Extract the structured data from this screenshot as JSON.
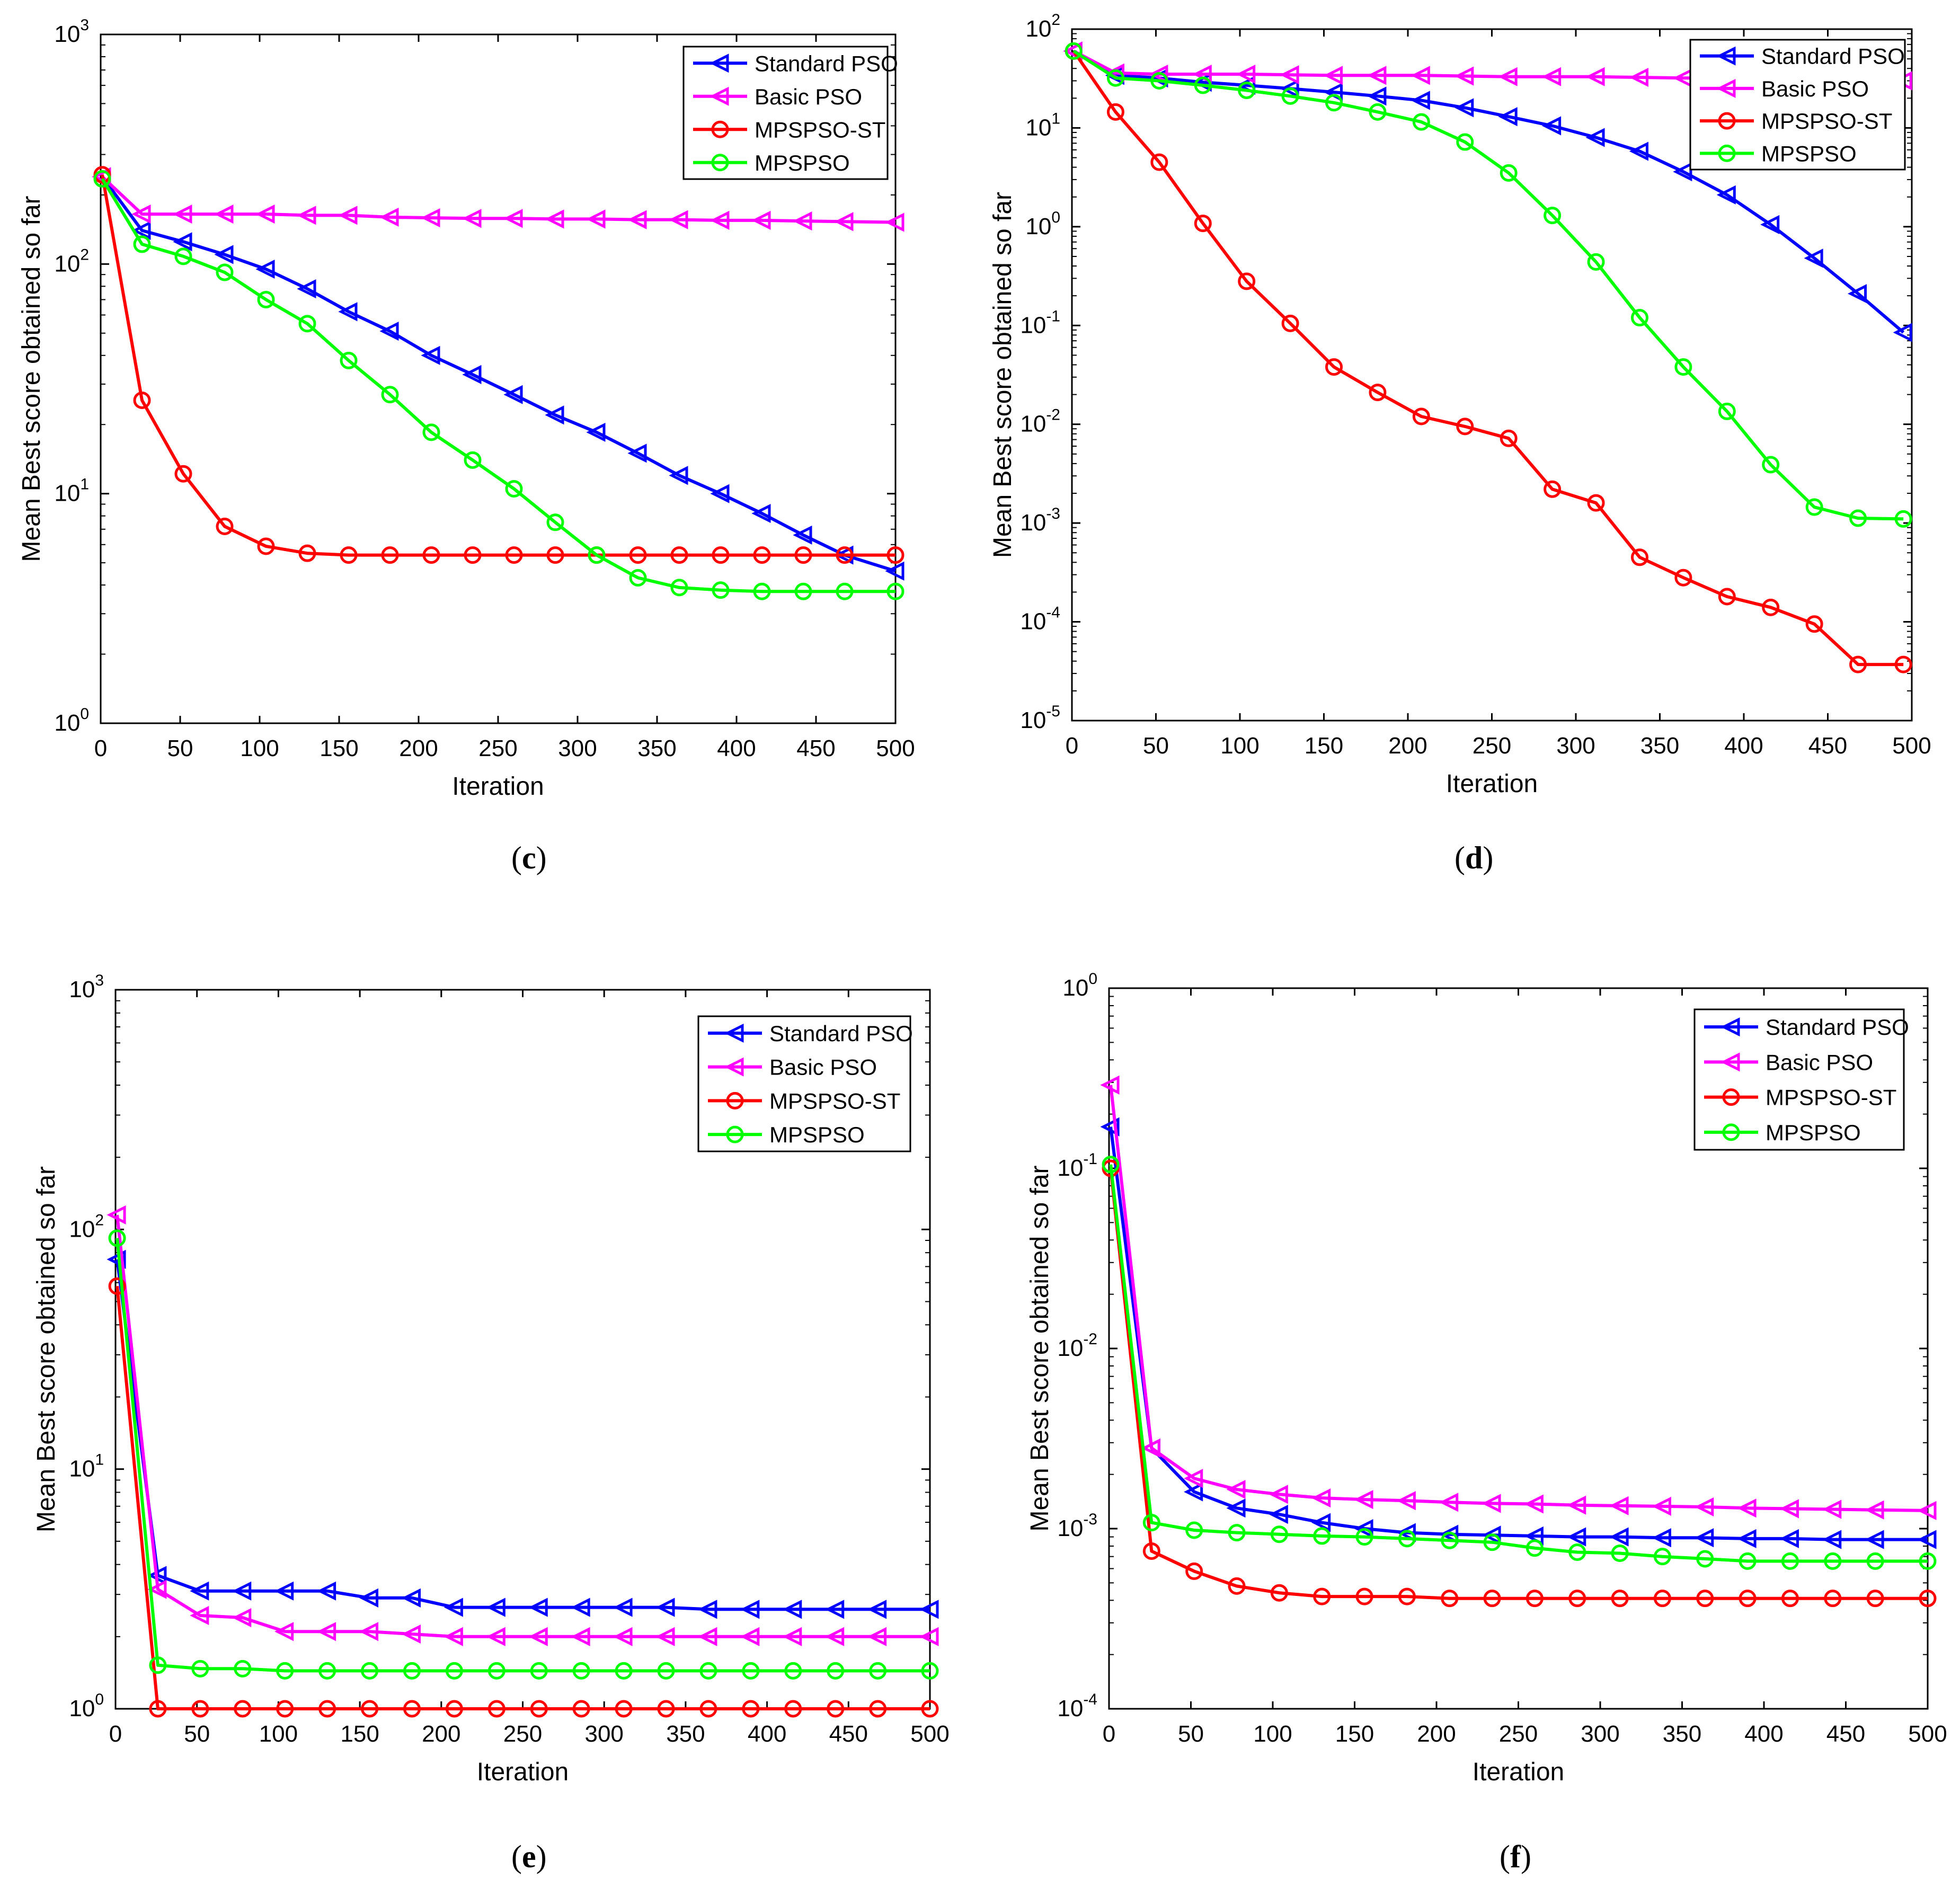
{
  "figure": {
    "panels": [
      "c",
      "d",
      "e",
      "f"
    ]
  },
  "series_styles": {
    "Standard PSO": {
      "color": "#0000ff",
      "marker": "triangle-left"
    },
    "Basic PSO": {
      "color": "#ff00ff",
      "marker": "triangle-left"
    },
    "MPSPSO-ST": {
      "color": "#ff0000",
      "marker": "circle"
    },
    "MPSPSO": {
      "color": "#00ff00",
      "marker": "circle"
    }
  },
  "chart_data": [
    {
      "panel": "c",
      "type": "line",
      "yscale": "log",
      "title": "",
      "xlabel": "Iteration",
      "ylabel": "Mean Best score obtained so far",
      "xlim": [
        0,
        500
      ],
      "ylim": [
        1,
        1000
      ],
      "xticks": [
        0,
        50,
        100,
        150,
        200,
        250,
        300,
        350,
        400,
        450,
        500
      ],
      "yticks": [
        1,
        10,
        100,
        1000
      ],
      "ytick_labels": [
        [
          "10",
          "0"
        ],
        [
          "10",
          "1"
        ],
        [
          "10",
          "2"
        ],
        [
          "10",
          "3"
        ]
      ],
      "legend": {
        "position": "top-right",
        "entries": [
          "Standard PSO",
          "Basic PSO",
          "MPSPSO-ST",
          "MPSPSO"
        ]
      },
      "x": [
        1,
        26,
        52,
        78,
        104,
        130,
        156,
        182,
        208,
        234,
        260,
        286,
        312,
        338,
        364,
        390,
        416,
        442,
        468,
        500
      ],
      "series": [
        {
          "name": "Standard PSO",
          "values": [
            240,
            140,
            125,
            110,
            95,
            78,
            62,
            51,
            40,
            33,
            27,
            22,
            18.5,
            15,
            12,
            10,
            8.2,
            6.6,
            5.4,
            4.6
          ]
        },
        {
          "name": "Basic PSO",
          "values": [
            240,
            165,
            165,
            165,
            165,
            163,
            163,
            160,
            159,
            158,
            158,
            157,
            157,
            156,
            156,
            155,
            155,
            154,
            153,
            152
          ]
        },
        {
          "name": "MPSPSO-ST",
          "values": [
            245,
            25.5,
            12.2,
            7.2,
            5.9,
            5.5,
            5.4,
            5.4,
            5.4,
            5.4,
            5.4,
            5.4,
            5.4,
            5.4,
            5.4,
            5.4,
            5.4,
            5.4,
            5.4,
            5.4
          ]
        },
        {
          "name": "MPSPSO",
          "values": [
            235,
            122,
            108,
            92,
            70,
            55,
            38,
            27,
            18.5,
            14,
            10.5,
            7.5,
            5.4,
            4.3,
            3.9,
            3.8,
            3.75,
            3.75,
            3.75,
            3.75
          ]
        }
      ]
    },
    {
      "panel": "d",
      "type": "line",
      "yscale": "log",
      "title": "",
      "xlabel": "Iteration",
      "ylabel": "Mean Best score obtained so far",
      "xlim": [
        0,
        500
      ],
      "ylim": [
        1e-05,
        100
      ],
      "xticks": [
        0,
        50,
        100,
        150,
        200,
        250,
        300,
        350,
        400,
        450,
        500
      ],
      "yticks": [
        1e-05,
        0.0001,
        0.001,
        0.01,
        0.1,
        1,
        10,
        100
      ],
      "ytick_labels": [
        [
          "10",
          "-5"
        ],
        [
          "10",
          "-4"
        ],
        [
          "10",
          "-3"
        ],
        [
          "10",
          "-2"
        ],
        [
          "10",
          "-1"
        ],
        [
          "10",
          "0"
        ],
        [
          "10",
          "1"
        ],
        [
          "10",
          "2"
        ]
      ],
      "legend": {
        "position": "top-right",
        "entries": [
          "Standard PSO",
          "Basic PSO",
          "MPSPSO-ST",
          "MPSPSO"
        ]
      },
      "x": [
        1,
        26,
        52,
        78,
        104,
        130,
        156,
        182,
        208,
        234,
        260,
        286,
        312,
        338,
        364,
        390,
        416,
        442,
        468,
        495
      ],
      "series": [
        {
          "name": "Standard PSO",
          "values": [
            60,
            34,
            32,
            29,
            27,
            25,
            23,
            21,
            19,
            16,
            13,
            10.5,
            8,
            5.8,
            3.6,
            2.1,
            1.05,
            0.48,
            0.21,
            0.085
          ]
        },
        {
          "name": "Basic PSO",
          "values": [
            60,
            36,
            35,
            35,
            35,
            34.5,
            34,
            34,
            34,
            33.5,
            33,
            33,
            33,
            32.5,
            32,
            32,
            31.5,
            31.5,
            31,
            30
          ]
        },
        {
          "name": "MPSPSO-ST",
          "values": [
            60,
            14.5,
            4.5,
            1.08,
            0.28,
            0.105,
            0.038,
            0.021,
            0.012,
            0.0095,
            0.0072,
            0.0022,
            0.0016,
            0.00045,
            0.00028,
            0.00018,
            0.00014,
            9.5e-05,
            3.7e-05,
            3.7e-05
          ]
        },
        {
          "name": "MPSPSO",
          "values": [
            60,
            32,
            30,
            27,
            24,
            21,
            18,
            14.5,
            11.5,
            7.2,
            3.5,
            1.3,
            0.44,
            0.12,
            0.038,
            0.0135,
            0.0039,
            0.00145,
            0.00112,
            0.0011
          ]
        }
      ]
    },
    {
      "panel": "e",
      "type": "line",
      "yscale": "log",
      "title": "",
      "xlabel": "Iteration",
      "ylabel": "Mean Best score obtained so far",
      "xlim": [
        0,
        500
      ],
      "ylim": [
        1,
        1000
      ],
      "xticks": [
        0,
        50,
        100,
        150,
        200,
        250,
        300,
        350,
        400,
        450,
        500
      ],
      "yticks": [
        1,
        10,
        100,
        1000
      ],
      "ytick_labels": [
        [
          "10",
          "0"
        ],
        [
          "10",
          "1"
        ],
        [
          "10",
          "2"
        ],
        [
          "10",
          "3"
        ]
      ],
      "legend": {
        "position": "top-right",
        "entries": [
          "Standard PSO",
          "Basic PSO",
          "MPSPSO-ST",
          "MPSPSO"
        ]
      },
      "x": [
        1,
        26,
        52,
        78,
        104,
        130,
        156,
        182,
        208,
        234,
        260,
        286,
        312,
        338,
        364,
        390,
        416,
        442,
        468,
        500
      ],
      "series": [
        {
          "name": "Standard PSO",
          "values": [
            75,
            3.6,
            3.1,
            3.1,
            3.1,
            3.1,
            2.9,
            2.9,
            2.65,
            2.65,
            2.65,
            2.65,
            2.65,
            2.65,
            2.6,
            2.6,
            2.6,
            2.6,
            2.6,
            2.6
          ]
        },
        {
          "name": "Basic PSO",
          "values": [
            115,
            3.15,
            2.45,
            2.4,
            2.1,
            2.1,
            2.1,
            2.05,
            2.0,
            2.0,
            2.0,
            2.0,
            2.0,
            2.0,
            2.0,
            2.0,
            2.0,
            2.0,
            2.0,
            2.0
          ]
        },
        {
          "name": "MPSPSO-ST",
          "values": [
            58,
            1.0,
            1.0,
            1.0,
            1.0,
            1.0,
            1.0,
            1.0,
            1.0,
            1.0,
            1.0,
            1.0,
            1.0,
            1.0,
            1.0,
            1.0,
            1.0,
            1.0,
            1.0,
            1.0
          ]
        },
        {
          "name": "MPSPSO",
          "values": [
            92,
            1.52,
            1.47,
            1.47,
            1.44,
            1.44,
            1.44,
            1.44,
            1.44,
            1.44,
            1.44,
            1.44,
            1.44,
            1.44,
            1.44,
            1.44,
            1.44,
            1.44,
            1.44,
            1.44
          ]
        }
      ]
    },
    {
      "panel": "f",
      "type": "line",
      "yscale": "log",
      "title": "",
      "xlabel": "Iteration",
      "ylabel": "Mean Best score obtained so far",
      "xlim": [
        0,
        500
      ],
      "ylim": [
        0.0001,
        1
      ],
      "xticks": [
        0,
        50,
        100,
        150,
        200,
        250,
        300,
        350,
        400,
        450,
        500
      ],
      "yticks": [
        0.0001,
        0.001,
        0.01,
        0.1,
        1
      ],
      "ytick_labels": [
        [
          "10",
          "-4"
        ],
        [
          "10",
          "-3"
        ],
        [
          "10",
          "-2"
        ],
        [
          "10",
          "-1"
        ],
        [
          "10",
          "0"
        ]
      ],
      "legend": {
        "position": "top-right",
        "entries": [
          "Standard PSO",
          "Basic PSO",
          "MPSPSO-ST",
          "MPSPSO"
        ]
      },
      "x": [
        1,
        26,
        52,
        78,
        104,
        130,
        156,
        182,
        208,
        234,
        260,
        286,
        312,
        338,
        364,
        390,
        416,
        442,
        468,
        500
      ],
      "series": [
        {
          "name": "Standard PSO",
          "values": [
            0.17,
            0.0028,
            0.0016,
            0.0013,
            0.0012,
            0.00108,
            0.001,
            0.00095,
            0.00093,
            0.00092,
            0.00091,
            0.0009,
            0.0009,
            0.00089,
            0.00089,
            0.00088,
            0.00088,
            0.00087,
            0.00087,
            0.00087
          ]
        },
        {
          "name": "Basic PSO",
          "values": [
            0.29,
            0.0028,
            0.0019,
            0.00165,
            0.00155,
            0.00148,
            0.00145,
            0.00143,
            0.0014,
            0.00138,
            0.00137,
            0.00135,
            0.00134,
            0.00133,
            0.00132,
            0.0013,
            0.00129,
            0.00128,
            0.00127,
            0.00126
          ]
        },
        {
          "name": "MPSPSO-ST",
          "values": [
            0.1,
            0.00075,
            0.00058,
            0.00048,
            0.00044,
            0.00042,
            0.00042,
            0.00042,
            0.00041,
            0.00041,
            0.00041,
            0.00041,
            0.00041,
            0.00041,
            0.00041,
            0.00041,
            0.00041,
            0.00041,
            0.00041,
            0.00041
          ]
        },
        {
          "name": "MPSPSO",
          "values": [
            0.105,
            0.00108,
            0.00098,
            0.00095,
            0.00093,
            0.00091,
            0.0009,
            0.00088,
            0.00086,
            0.00084,
            0.00078,
            0.00074,
            0.00073,
            0.0007,
            0.00068,
            0.00066,
            0.00066,
            0.00066,
            0.00066,
            0.00066
          ]
        }
      ]
    }
  ]
}
